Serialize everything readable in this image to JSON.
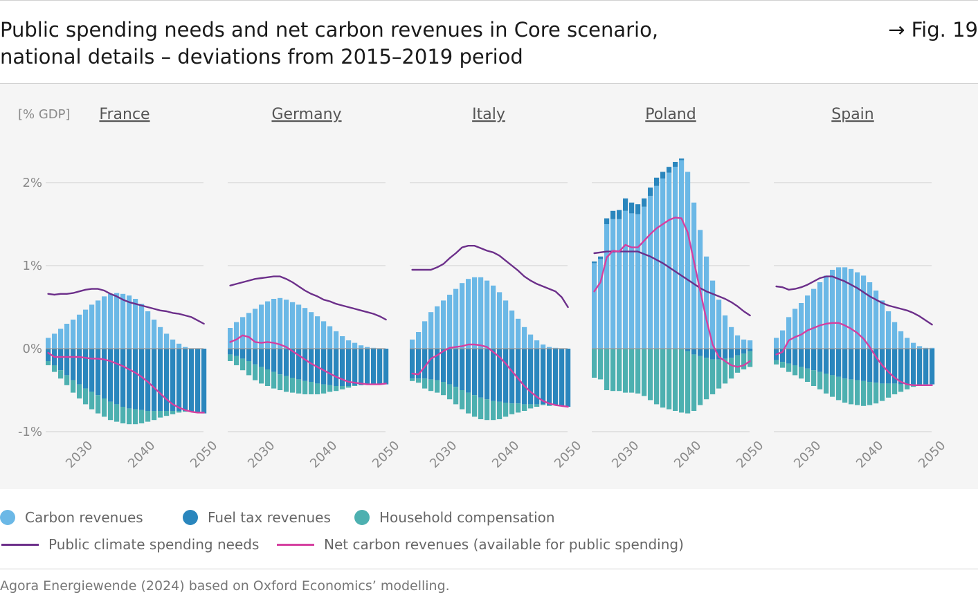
{
  "header": {
    "title_line1": "Public spending needs and net carbon revenues in Core scenario,",
    "title_line2": "national details – deviations from 2015–2019 period",
    "fig_ref": "→ Fig. 19"
  },
  "legend": {
    "carbon": "Carbon revenues",
    "fuel": "Fuel tax revenues",
    "household": "Household compensation",
    "needs": "Public climate spending needs",
    "net": "Net carbon revenues (available for public spending)"
  },
  "source": "Agora Energiewende (2024) based on Oxford Economics’ modelling.",
  "colors": {
    "carbon": "#6bb8e6",
    "fuel": "#2a86bd",
    "household": "#4db0b0",
    "needs": "#6c2f8a",
    "net": "#d53fa0",
    "grid": "#e2e2e2",
    "zero": "#9a9a9a",
    "panel_bg": "#f5f5f5"
  },
  "chart_data": {
    "type": "bar",
    "unit_label": "[% GDP]",
    "y_ticks": [
      {
        "v": 2,
        "label": "2%"
      },
      {
        "v": 1,
        "label": "1%"
      },
      {
        "v": 0,
        "label": "0%"
      },
      {
        "v": -1,
        "label": "-1%"
      }
    ],
    "ylim": [
      -1.1,
      2.4
    ],
    "x": [
      2025,
      2026,
      2027,
      2028,
      2029,
      2030,
      2031,
      2032,
      2033,
      2034,
      2035,
      2036,
      2037,
      2038,
      2039,
      2040,
      2041,
      2042,
      2043,
      2044,
      2045,
      2046,
      2047,
      2048,
      2049,
      2050
    ],
    "x_ticks": [
      "2030",
      "2040",
      "2050"
    ],
    "panels": [
      {
        "name": "France",
        "carbon": [
          0.13,
          0.18,
          0.24,
          0.3,
          0.35,
          0.41,
          0.47,
          0.53,
          0.58,
          0.63,
          0.66,
          0.67,
          0.66,
          0.64,
          0.6,
          0.54,
          0.45,
          0.35,
          0.26,
          0.18,
          0.11,
          0.06,
          0.02,
          0.0,
          0.0,
          0.0
        ],
        "fuel": [
          -0.15,
          -0.2,
          -0.26,
          -0.32,
          -0.38,
          -0.43,
          -0.48,
          -0.52,
          -0.56,
          -0.6,
          -0.64,
          -0.67,
          -0.7,
          -0.72,
          -0.73,
          -0.74,
          -0.75,
          -0.75,
          -0.75,
          -0.75,
          -0.75,
          -0.75,
          -0.75,
          -0.76,
          -0.77,
          -0.78
        ],
        "household": [
          -0.05,
          -0.08,
          -0.1,
          -0.12,
          -0.15,
          -0.17,
          -0.19,
          -0.21,
          -0.22,
          -0.22,
          -0.22,
          -0.21,
          -0.2,
          -0.19,
          -0.18,
          -0.16,
          -0.13,
          -0.11,
          -0.08,
          -0.06,
          -0.04,
          -0.02,
          -0.01,
          0.0,
          0.0,
          0.0
        ],
        "needs": [
          0.66,
          0.65,
          0.66,
          0.66,
          0.67,
          0.69,
          0.71,
          0.72,
          0.72,
          0.7,
          0.66,
          0.63,
          0.59,
          0.56,
          0.54,
          0.52,
          0.5,
          0.48,
          0.46,
          0.45,
          0.43,
          0.42,
          0.4,
          0.38,
          0.34,
          0.3
        ],
        "net": [
          -0.05,
          -0.1,
          -0.1,
          -0.1,
          -0.1,
          -0.1,
          -0.11,
          -0.12,
          -0.12,
          -0.13,
          -0.15,
          -0.18,
          -0.21,
          -0.25,
          -0.29,
          -0.34,
          -0.4,
          -0.47,
          -0.54,
          -0.61,
          -0.67,
          -0.71,
          -0.74,
          -0.76,
          -0.77,
          -0.77
        ]
      },
      {
        "name": "Germany",
        "carbon": [
          0.25,
          0.32,
          0.38,
          0.43,
          0.48,
          0.53,
          0.57,
          0.6,
          0.61,
          0.59,
          0.56,
          0.53,
          0.49,
          0.44,
          0.39,
          0.33,
          0.27,
          0.21,
          0.15,
          0.1,
          0.07,
          0.04,
          0.02,
          0.01,
          0.0,
          0.0
        ],
        "fuel": [
          -0.07,
          -0.09,
          -0.12,
          -0.15,
          -0.19,
          -0.22,
          -0.25,
          -0.28,
          -0.31,
          -0.33,
          -0.35,
          -0.37,
          -0.39,
          -0.4,
          -0.42,
          -0.43,
          -0.44,
          -0.45,
          -0.45,
          -0.45,
          -0.44,
          -0.44,
          -0.43,
          -0.43,
          -0.43,
          -0.43
        ],
        "household": [
          -0.08,
          -0.11,
          -0.14,
          -0.17,
          -0.19,
          -0.2,
          -0.2,
          -0.2,
          -0.19,
          -0.19,
          -0.18,
          -0.17,
          -0.16,
          -0.15,
          -0.13,
          -0.11,
          -0.08,
          -0.06,
          -0.04,
          -0.02,
          -0.01,
          0.0,
          0.0,
          0.0,
          0.0,
          0.0
        ],
        "needs": [
          0.76,
          0.78,
          0.8,
          0.82,
          0.84,
          0.85,
          0.86,
          0.87,
          0.87,
          0.84,
          0.8,
          0.75,
          0.7,
          0.66,
          0.63,
          0.59,
          0.57,
          0.54,
          0.52,
          0.5,
          0.48,
          0.46,
          0.44,
          0.42,
          0.39,
          0.35
        ],
        "net": [
          0.08,
          0.11,
          0.16,
          0.14,
          0.08,
          0.07,
          0.08,
          0.07,
          0.05,
          0.02,
          -0.03,
          -0.08,
          -0.13,
          -0.18,
          -0.22,
          -0.26,
          -0.3,
          -0.34,
          -0.37,
          -0.4,
          -0.41,
          -0.42,
          -0.43,
          -0.43,
          -0.43,
          -0.42
        ]
      },
      {
        "name": "Italy",
        "carbon": [
          0.11,
          0.2,
          0.33,
          0.44,
          0.51,
          0.58,
          0.65,
          0.72,
          0.79,
          0.84,
          0.86,
          0.86,
          0.82,
          0.76,
          0.68,
          0.58,
          0.46,
          0.36,
          0.26,
          0.17,
          0.1,
          0.05,
          0.02,
          0.01,
          0.0,
          0.0
        ],
        "fuel": [
          -0.36,
          -0.36,
          -0.36,
          -0.37,
          -0.38,
          -0.4,
          -0.43,
          -0.46,
          -0.5,
          -0.53,
          -0.56,
          -0.59,
          -0.61,
          -0.63,
          -0.64,
          -0.65,
          -0.66,
          -0.66,
          -0.67,
          -0.67,
          -0.67,
          -0.67,
          -0.68,
          -0.68,
          -0.69,
          -0.7
        ],
        "household": [
          -0.03,
          -0.05,
          -0.12,
          -0.14,
          -0.15,
          -0.16,
          -0.18,
          -0.21,
          -0.23,
          -0.25,
          -0.26,
          -0.26,
          -0.25,
          -0.23,
          -0.21,
          -0.17,
          -0.13,
          -0.11,
          -0.08,
          -0.05,
          -0.03,
          -0.01,
          -0.01,
          0.0,
          0.0,
          0.0
        ],
        "needs": [
          0.95,
          0.95,
          0.95,
          0.95,
          0.98,
          1.02,
          1.09,
          1.15,
          1.22,
          1.24,
          1.24,
          1.21,
          1.18,
          1.16,
          1.12,
          1.06,
          1.0,
          0.94,
          0.87,
          0.82,
          0.78,
          0.75,
          0.72,
          0.69,
          0.62,
          0.5
        ],
        "net": [
          -0.3,
          -0.31,
          -0.22,
          -0.12,
          -0.08,
          -0.03,
          0.01,
          0.02,
          0.03,
          0.05,
          0.05,
          0.04,
          0.02,
          -0.04,
          -0.1,
          -0.18,
          -0.27,
          -0.36,
          -0.45,
          -0.52,
          -0.58,
          -0.63,
          -0.66,
          -0.68,
          -0.69,
          -0.7
        ]
      },
      {
        "name": "Poland",
        "carbon": [
          1.03,
          1.08,
          1.5,
          1.56,
          1.56,
          1.66,
          1.63,
          1.62,
          1.71,
          1.84,
          1.96,
          2.05,
          2.12,
          2.19,
          2.27,
          2.13,
          1.76,
          1.43,
          1.11,
          0.82,
          0.59,
          0.4,
          0.26,
          0.16,
          0.11,
          0.1
        ],
        "fuel": [
          0.02,
          0.03,
          0.07,
          0.1,
          0.11,
          0.15,
          0.13,
          0.12,
          0.1,
          0.1,
          0.1,
          0.08,
          0.07,
          0.06,
          0.02,
          -0.03,
          -0.07,
          -0.09,
          -0.11,
          -0.13,
          -0.13,
          -0.12,
          -0.11,
          -0.08,
          -0.06,
          -0.03
        ],
        "household": [
          -0.35,
          -0.37,
          -0.5,
          -0.51,
          -0.51,
          -0.53,
          -0.53,
          -0.54,
          -0.57,
          -0.62,
          -0.67,
          -0.71,
          -0.73,
          -0.75,
          -0.77,
          -0.75,
          -0.68,
          -0.59,
          -0.5,
          -0.42,
          -0.35,
          -0.3,
          -0.25,
          -0.21,
          -0.19,
          -0.19
        ],
        "needs": [
          1.15,
          1.16,
          1.17,
          1.17,
          1.17,
          1.17,
          1.17,
          1.17,
          1.14,
          1.11,
          1.07,
          1.03,
          0.98,
          0.93,
          0.88,
          0.83,
          0.78,
          0.73,
          0.69,
          0.66,
          0.63,
          0.6,
          0.56,
          0.51,
          0.45,
          0.4
        ],
        "net": [
          0.69,
          0.8,
          1.1,
          1.18,
          1.17,
          1.25,
          1.22,
          1.22,
          1.3,
          1.38,
          1.45,
          1.5,
          1.55,
          1.58,
          1.57,
          1.4,
          1.05,
          0.7,
          0.35,
          0.05,
          -0.1,
          -0.15,
          -0.2,
          -0.22,
          -0.2,
          -0.15
        ]
      },
      {
        "name": "Spain",
        "carbon": [
          0.13,
          0.22,
          0.38,
          0.48,
          0.55,
          0.64,
          0.72,
          0.8,
          0.88,
          0.95,
          0.98,
          0.98,
          0.96,
          0.92,
          0.88,
          0.8,
          0.7,
          0.58,
          0.45,
          0.32,
          0.21,
          0.13,
          0.07,
          0.03,
          0.01,
          0.01
        ],
        "fuel": [
          -0.14,
          -0.16,
          -0.18,
          -0.2,
          -0.22,
          -0.24,
          -0.26,
          -0.28,
          -0.3,
          -0.32,
          -0.34,
          -0.36,
          -0.37,
          -0.38,
          -0.39,
          -0.4,
          -0.41,
          -0.42,
          -0.42,
          -0.42,
          -0.43,
          -0.43,
          -0.43,
          -0.43,
          -0.43,
          -0.43
        ],
        "household": [
          -0.05,
          -0.07,
          -0.1,
          -0.12,
          -0.14,
          -0.16,
          -0.19,
          -0.21,
          -0.24,
          -0.26,
          -0.28,
          -0.29,
          -0.3,
          -0.3,
          -0.3,
          -0.28,
          -0.25,
          -0.21,
          -0.17,
          -0.13,
          -0.09,
          -0.06,
          -0.03,
          -0.01,
          0.0,
          0.0
        ],
        "needs": [
          0.75,
          0.74,
          0.71,
          0.72,
          0.74,
          0.77,
          0.81,
          0.85,
          0.87,
          0.87,
          0.84,
          0.81,
          0.77,
          0.73,
          0.68,
          0.63,
          0.59,
          0.55,
          0.52,
          0.5,
          0.48,
          0.46,
          0.43,
          0.39,
          0.34,
          0.29
        ],
        "net": [
          -0.07,
          -0.04,
          0.1,
          0.14,
          0.17,
          0.22,
          0.25,
          0.28,
          0.3,
          0.31,
          0.31,
          0.28,
          0.24,
          0.19,
          0.12,
          0.02,
          -0.1,
          -0.2,
          -0.28,
          -0.35,
          -0.4,
          -0.43,
          -0.44,
          -0.44,
          -0.44,
          -0.44
        ]
      }
    ]
  }
}
